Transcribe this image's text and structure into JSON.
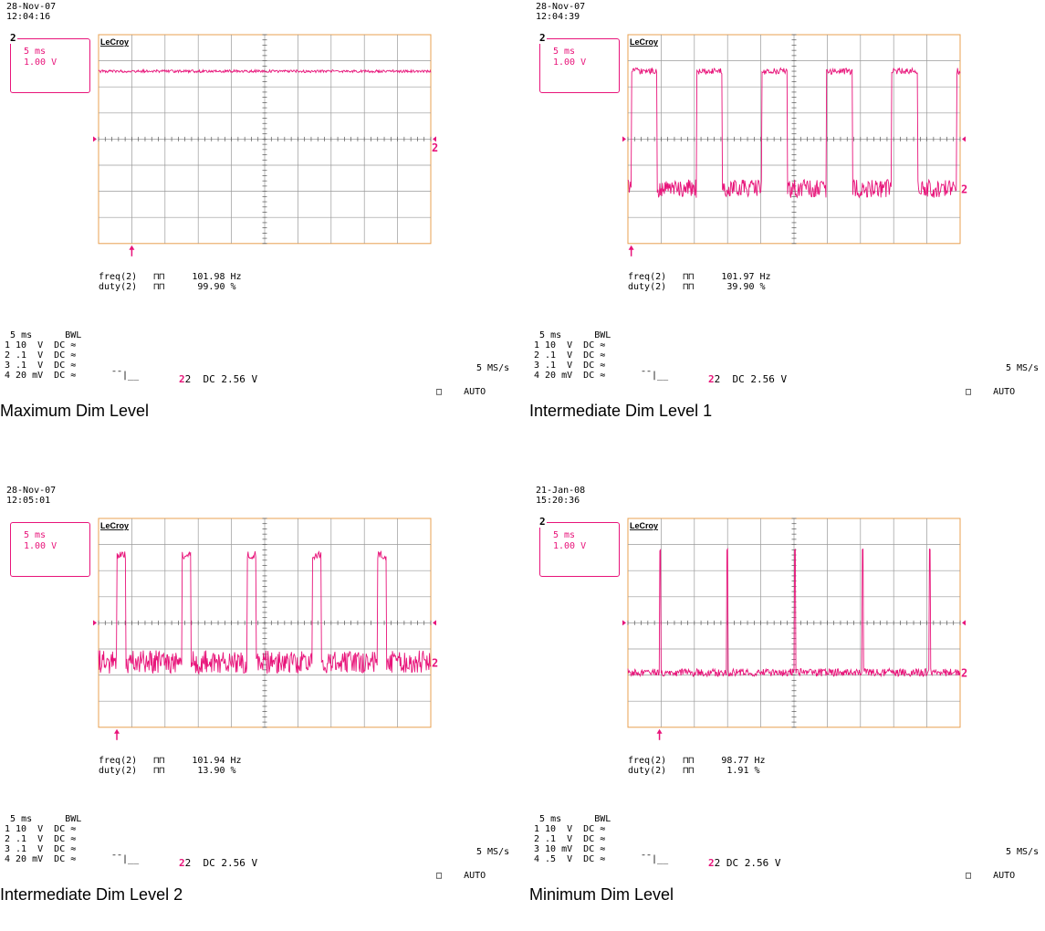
{
  "colors": {
    "trace": "#e8147a",
    "grid": "#9a9a9a",
    "frame": "#e8a050",
    "marker": "#e8147a"
  },
  "panels": [
    {
      "date": "28-Nov-07",
      "time": "12:04:16",
      "channel_box": {
        "channel": "2",
        "timebase": "5 ms",
        "volts": "1.00 V"
      },
      "brand": "LeCroy",
      "trace_channel": "2",
      "measurements": {
        "freq_label": "freq(2)",
        "freq_value": "101.98 Hz",
        "duty_label": "duty(2)",
        "duty_value": "99.90 %"
      },
      "settings": {
        "timebase": "5 ms",
        "bwl": "BWL",
        "ch1": "1 10  V  DC",
        "ch2": "2 .1  V  DC",
        "ch3": "3 .1  V  DC",
        "ch4": "4 20 mV  DC",
        "trigger": "2  DC 2.56 V",
        "rate": "5 MS/s",
        "mode": "AUTO"
      },
      "caption": "Maximum Dim Level"
    },
    {
      "date": "28-Nov-07",
      "time": "12:04:39",
      "channel_box": {
        "channel": "2",
        "timebase": "5 ms",
        "volts": "1.00 V"
      },
      "brand": "LeCroy",
      "trace_channel": "2",
      "measurements": {
        "freq_label": "freq(2)",
        "freq_value": "101.97 Hz",
        "duty_label": "duty(2)",
        "duty_value": "39.90 %"
      },
      "settings": {
        "timebase": "5 ms",
        "bwl": "BWL",
        "ch1": "1 10  V  DC",
        "ch2": "2 .1  V  DC",
        "ch3": "3 .1  V  DC",
        "ch4": "4 20 mV  DC",
        "trigger": "2  DC 2.56 V",
        "rate": "5 MS/s",
        "mode": "AUTO"
      },
      "caption": "Intermediate Dim Level 1"
    },
    {
      "date": "28-Nov-07",
      "time": "12:05:01",
      "channel_box": {
        "channel": "",
        "timebase": "5 ms",
        "volts": "1.00 V"
      },
      "brand": "LeCroy",
      "trace_channel": "2",
      "measurements": {
        "freq_label": "freq(2)",
        "freq_value": "101.94 Hz",
        "duty_label": "duty(2)",
        "duty_value": "13.90 %"
      },
      "settings": {
        "timebase": "5 ms",
        "bwl": "BWL",
        "ch1": "1 10  V  DC",
        "ch2": "2 .1  V  DC",
        "ch3": "3 .1  V  DC",
        "ch4": "4 20 mV  DC",
        "trigger": "2  DC 2.56 V",
        "rate": "5 MS/s",
        "mode": "AUTO"
      },
      "caption": "Intermediate Dim Level 2"
    },
    {
      "date": "21-Jan-08",
      "time": "15:20:36",
      "channel_box": {
        "channel": "2",
        "timebase": "5 ms",
        "volts": "1.00 V"
      },
      "brand": "LeCroy",
      "trace_channel": "2",
      "measurements": {
        "freq_label": "freq(2)",
        "freq_value": "98.77 Hz",
        "duty_label": "duty(2)",
        "duty_value": "1.91 %"
      },
      "settings": {
        "timebase": "5 ms",
        "bwl": "BWL",
        "ch1": "1 10  V  DC",
        "ch2": "2 .1  V  DC",
        "ch3": "3 10 mV  DC",
        "ch4": "4 .5  V  DC",
        "trigger": "2 DC 2.56 V",
        "rate": "5 MS/s",
        "mode": "AUTO"
      },
      "caption": "Minimum Dim Level"
    }
  ],
  "chart_data": [
    {
      "type": "line",
      "title": "Maximum Dim Level",
      "timebase_ms_per_div": 5,
      "volts_per_div": 1.0,
      "frequency_hz": 101.98,
      "duty_percent": 99.9,
      "period_divs": 1.96,
      "high_level_divs": 2.6,
      "low_level_divs": -0.3,
      "first_rise_div": 1.0,
      "noise_divs": 0.15
    },
    {
      "type": "line",
      "title": "Intermediate Dim Level 1",
      "timebase_ms_per_div": 5,
      "volts_per_div": 1.0,
      "frequency_hz": 101.97,
      "duty_percent": 39.9,
      "period_divs": 1.96,
      "high_level_divs": 2.6,
      "low_level_divs": -1.9,
      "first_rise_div": 0.1,
      "noise_divs": 0.35
    },
    {
      "type": "line",
      "title": "Intermediate Dim Level 2",
      "timebase_ms_per_div": 5,
      "volts_per_div": 1.0,
      "frequency_hz": 101.94,
      "duty_percent": 13.9,
      "period_divs": 1.96,
      "high_level_divs": 2.6,
      "low_level_divs": -1.5,
      "first_rise_div": 0.55,
      "noise_divs": 0.45
    },
    {
      "type": "line",
      "title": "Minimum Dim Level",
      "timebase_ms_per_div": 5,
      "volts_per_div": 1.0,
      "frequency_hz": 98.77,
      "duty_percent": 1.91,
      "period_divs": 2.03,
      "high_level_divs": 2.8,
      "low_level_divs": -1.9,
      "first_rise_div": 0.95,
      "noise_divs": 0.15
    }
  ]
}
